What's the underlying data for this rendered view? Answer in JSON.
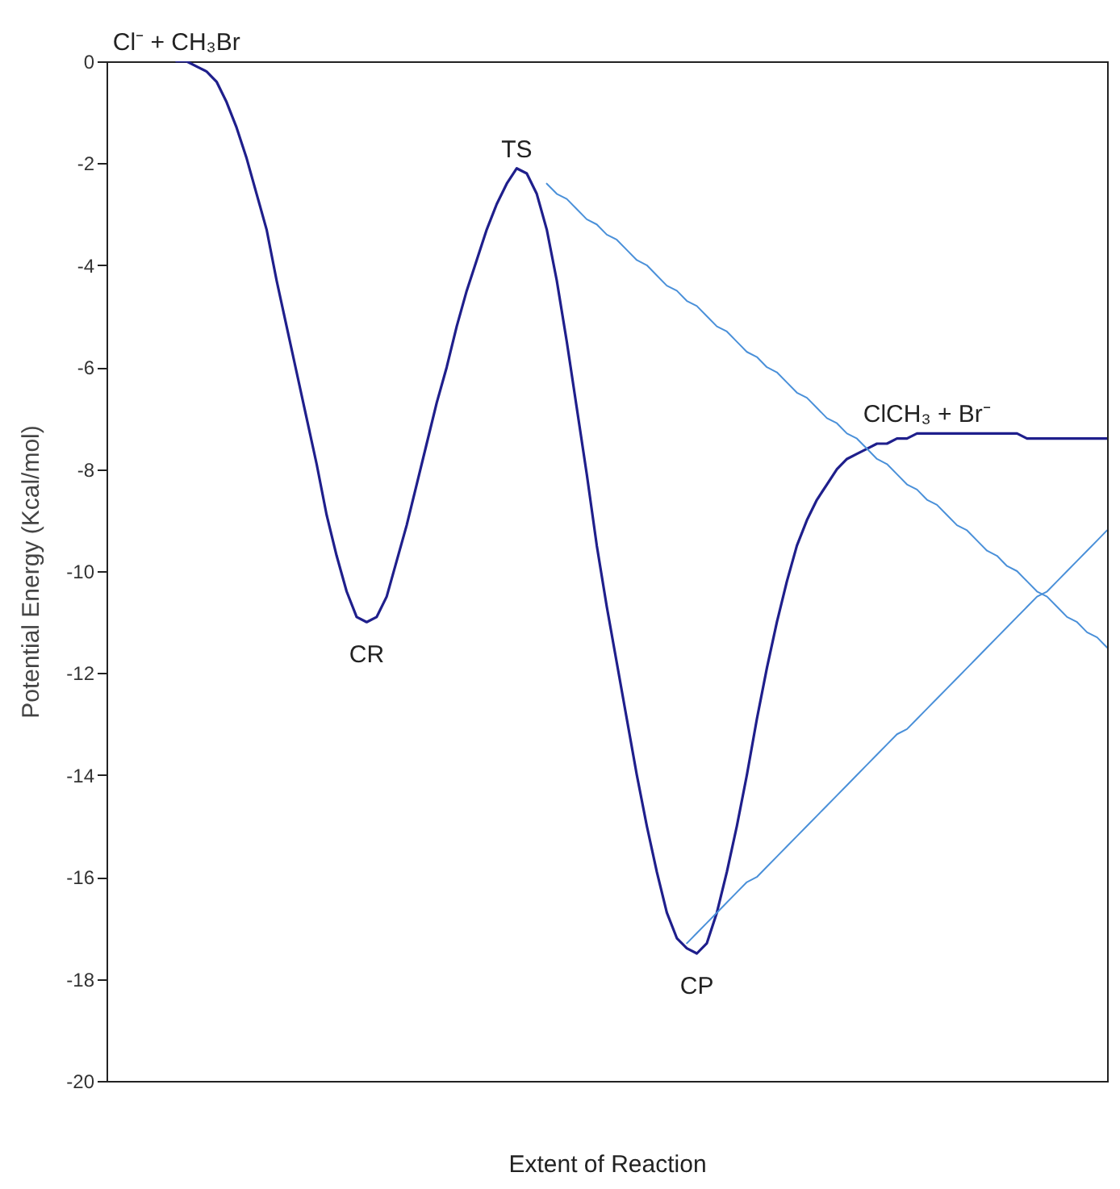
{
  "chart_data": {
    "type": "line",
    "xlabel": "Extent of Reaction",
    "ylabel": "Potential Energy (Kcal/mol)",
    "ylim": [
      -20,
      0
    ],
    "categories": [
      null,
      null,
      null,
      null,
      null,
      null,
      null,
      null,
      null,
      null,
      null,
      null,
      null,
      null,
      null,
      null,
      null,
      null,
      null,
      null,
      null,
      null,
      null,
      null,
      null,
      null,
      null,
      null,
      null,
      null,
      null,
      null,
      null,
      null,
      null,
      null,
      null,
      null,
      null,
      null,
      null,
      null,
      null,
      null,
      null,
      null,
      null,
      null,
      null,
      null,
      null,
      null,
      null,
      null,
      null,
      null,
      null,
      null,
      null,
      null,
      null,
      null,
      null,
      null,
      null,
      null,
      null,
      null,
      null,
      null,
      null,
      null,
      null,
      null,
      null,
      null,
      null,
      null,
      null,
      null,
      null,
      null,
      null,
      null,
      null,
      null,
      null,
      null,
      null,
      null,
      null,
      null,
      null,
      null,
      null,
      null,
      null,
      null,
      null,
      null,
      null
    ],
    "yticks": [
      -20,
      -18,
      -16,
      -14,
      -12,
      -10,
      -8,
      -6,
      -4,
      -2,
      0
    ],
    "tick_labels": "y",
    "grid": false,
    "legend": false,
    "line_style": "solid",
    "marker": "none",
    "series": [
      {
        "color": "#1f1f8c",
        "values": [
          null,
          null,
          null,
          null,
          null,
          null,
          null,
          0,
          0,
          -0.1,
          -0.2,
          -0.4,
          -0.8,
          -1.3,
          -1.9,
          -2.6,
          -3.3,
          -4.3,
          -5.2,
          -6.1,
          -7.0,
          -7.9,
          -8.9,
          -9.7,
          -10.4,
          -10.9,
          -11.0,
          -10.9,
          -10.5,
          -9.8,
          -9.1,
          -8.3,
          -7.5,
          -6.7,
          -6.0,
          -5.2,
          -4.5,
          -3.9,
          -3.3,
          -2.8,
          -2.4,
          -2.1,
          -2.2,
          -2.6,
          -3.3,
          -4.3,
          -5.5,
          -6.8,
          -8.1,
          -9.5,
          -10.7,
          -11.8,
          -12.9,
          -14.0,
          -15.0,
          -15.9,
          -16.7,
          -17.2,
          -17.4,
          -17.5,
          -17.3,
          -16.7,
          -15.9,
          -15.0,
          -14.0,
          -12.9,
          -11.9,
          -11.0,
          -10.2,
          -9.5,
          -9.0,
          -8.6,
          -8.3,
          -8.0,
          -7.8,
          -7.7,
          -7.6,
          -7.5,
          -7.5,
          -7.4,
          -7.4,
          -7.3,
          -7.3,
          -7.3,
          -7.3,
          -7.3,
          -7.3,
          -7.3,
          -7.3,
          -7.3,
          -7.3,
          -7.3,
          -7.4,
          -7.4,
          -7.4,
          -7.4,
          -7.4,
          -7.4,
          -7.4,
          -7.4,
          -7.4
        ]
      },
      {
        "color": "#4a90d9",
        "values": [
          null,
          null,
          null,
          null,
          null,
          null,
          null,
          null,
          null,
          null,
          null,
          null,
          null,
          null,
          null,
          null,
          null,
          null,
          null,
          null,
          null,
          null,
          null,
          null,
          null,
          null,
          null,
          null,
          null,
          null,
          null,
          null,
          null,
          null,
          null,
          null,
          null,
          null,
          null,
          null,
          null,
          null,
          null,
          null,
          -2.4,
          -2.6,
          -2.7,
          -2.9,
          -3.1,
          -3.2,
          -3.4,
          -3.5,
          -3.7,
          -3.9,
          -4.0,
          -4.2,
          -4.4,
          -4.5,
          -4.7,
          -4.8,
          -5.0,
          -5.2,
          -5.3,
          -5.5,
          -5.7,
          -5.8,
          -6.0,
          -6.1,
          -6.3,
          -6.5,
          -6.6,
          -6.8,
          -7.0,
          -7.1,
          -7.3,
          -7.4,
          -7.6,
          -7.8,
          -7.9,
          -8.1,
          -8.3,
          -8.4,
          -8.6,
          -8.7,
          -8.9,
          -9.1,
          -9.2,
          -9.4,
          -9.6,
          -9.7,
          -9.9,
          -10.0,
          -10.2,
          -10.4,
          -10.5,
          -10.7,
          -10.9,
          -11.0,
          -11.2,
          -11.3,
          -11.5
        ]
      },
      {
        "color": "#4a90d9",
        "values": [
          null,
          null,
          null,
          null,
          null,
          null,
          null,
          null,
          null,
          null,
          null,
          null,
          null,
          null,
          null,
          null,
          null,
          null,
          null,
          null,
          null,
          null,
          null,
          null,
          null,
          null,
          null,
          null,
          null,
          null,
          null,
          null,
          null,
          null,
          null,
          null,
          null,
          null,
          null,
          null,
          null,
          null,
          null,
          null,
          null,
          null,
          null,
          null,
          null,
          null,
          null,
          null,
          null,
          null,
          null,
          null,
          null,
          null,
          -17.3,
          -17.1,
          -16.9,
          -16.7,
          -16.5,
          -16.3,
          -16.1,
          -16.0,
          -15.8,
          -15.6,
          -15.4,
          -15.2,
          -15.0,
          -14.8,
          -14.6,
          -14.4,
          -14.2,
          -14.0,
          -13.8,
          -13.6,
          -13.4,
          -13.2,
          -13.1,
          -12.9,
          -12.7,
          -12.5,
          -12.3,
          -12.1,
          -11.9,
          -11.7,
          -11.5,
          -11.3,
          -11.1,
          -10.9,
          -10.7,
          -10.5,
          -10.4,
          -10.2,
          -10.0,
          -9.8,
          -9.6,
          -9.4,
          -9.2
        ]
      }
    ],
    "annotations": [
      {
        "text": "Cl⁻ + CH₃Br",
        "y": 0
      },
      {
        "text": "TS",
        "y": -2.1
      },
      {
        "text": "CR",
        "y": -11.0
      },
      {
        "text": "CP",
        "y": -17.5
      },
      {
        "text": "ClCH₃ + Br⁻",
        "y": -7.3
      }
    ]
  }
}
